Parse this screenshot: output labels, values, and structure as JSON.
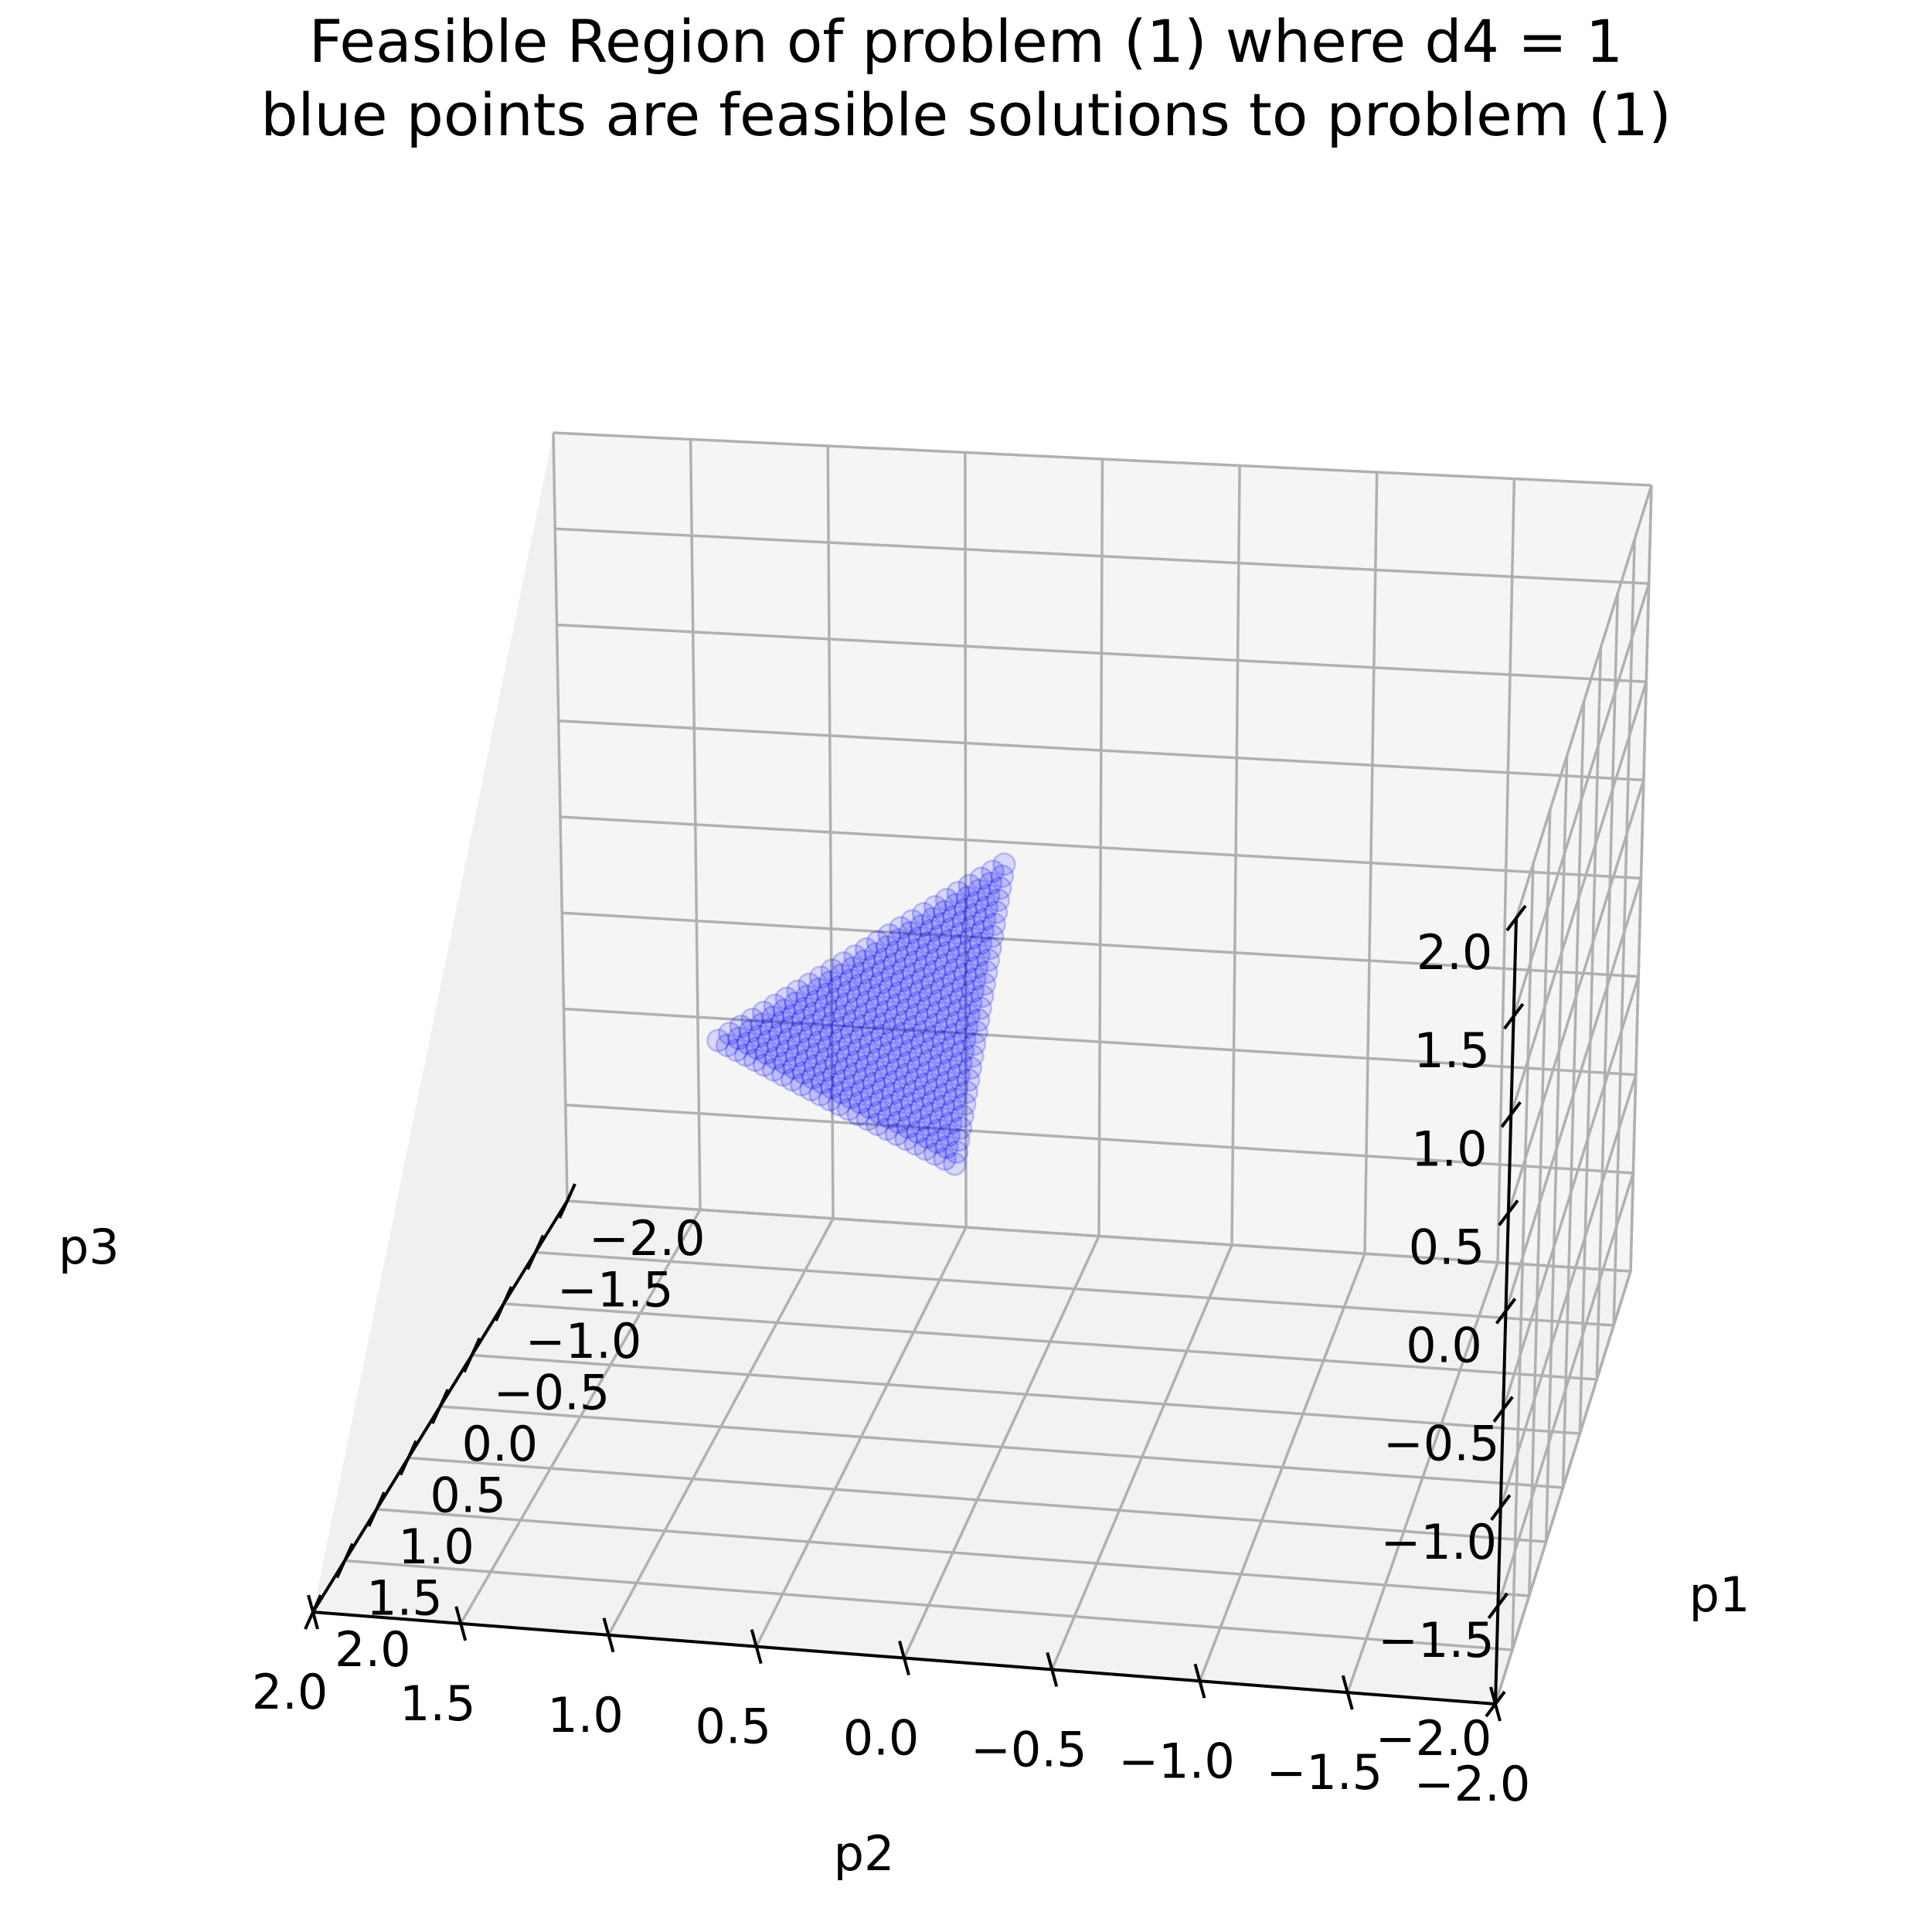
{
  "chart_data": {
    "type": "scatter",
    "title": "Feasible Region of problem (1) where d4 = 1",
    "subtitle": "blue points are feasible solutions to problem (1)",
    "xlabel": "p1",
    "ylabel": "p2",
    "zlabel": "p3",
    "xlim": [
      -2.0,
      2.0
    ],
    "ylim": [
      -2.0,
      2.0
    ],
    "zlim": [
      -2.0,
      2.0
    ],
    "xticks": [
      "−2.0",
      "−1.5",
      "−1.0",
      "−0.5",
      "0.0",
      "0.5",
      "1.0",
      "1.5",
      "2.0"
    ],
    "yticks": [
      "−2.0",
      "−1.5",
      "−1.0",
      "−0.5",
      "0.0",
      "0.5",
      "1.0",
      "1.5",
      "2.0"
    ],
    "zticks": [
      "−2.0",
      "−1.5",
      "−1.0",
      "−0.5",
      "0.0",
      "0.5",
      "1.0",
      "1.5",
      "2.0"
    ],
    "grid": true,
    "point_color": "#0000ff",
    "point_opacity": 0.12,
    "feasible_region": {
      "description_values": "points with p1 >= 0, p2 >= 0, p3 >= 0 and p1 + p2 + p3 = 1",
      "vertices": [
        [
          1,
          0,
          0
        ],
        [
          0,
          1,
          0
        ],
        [
          0,
          0,
          1
        ]
      ],
      "grid_step": 0.04
    }
  }
}
